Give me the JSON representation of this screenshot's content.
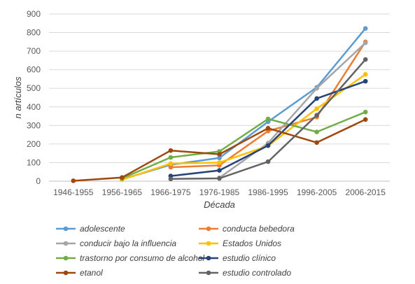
{
  "chart_data": {
    "type": "line",
    "title": "",
    "xlabel": "Década",
    "ylabel": "n artículos",
    "ylim": [
      0,
      900
    ],
    "yticks": [
      0,
      100,
      200,
      300,
      400,
      500,
      600,
      700,
      800,
      900
    ],
    "grid": "horizontal",
    "legend_position": "bottom",
    "categories": [
      "1946-1955",
      "1956-1965",
      "1966-1975",
      "1976-1985",
      "1986-1995",
      "1996-2005",
      "2006-2015"
    ],
    "series": [
      {
        "name": "adolescente",
        "color": "#5B9BD5",
        "values": [
          null,
          10,
          88,
          125,
          320,
          505,
          822
        ]
      },
      {
        "name": "conducta bebedora",
        "color": "#ED7D31",
        "values": [
          null,
          null,
          75,
          85,
          270,
          345,
          750
        ]
      },
      {
        "name": "conducir bajo la influencia",
        "color": "#A5A5A5",
        "values": [
          null,
          null,
          null,
          18,
          205,
          500,
          745
        ]
      },
      {
        "name": "Estados Unidos",
        "color": "#FFC000",
        "values": [
          null,
          8,
          95,
          100,
          190,
          390,
          575
        ]
      },
      {
        "name": "trastorno por consumo de alcohol",
        "color": "#70AD47",
        "values": [
          null,
          15,
          128,
          160,
          335,
          265,
          372
        ]
      },
      {
        "name": "estudio clínico",
        "color": "#264478",
        "values": [
          null,
          null,
          28,
          58,
          192,
          445,
          538
        ]
      },
      {
        "name": "etanol",
        "color": "#9E480E",
        "values": [
          2,
          20,
          165,
          145,
          285,
          208,
          332
        ]
      },
      {
        "name": "estudio controlado",
        "color": "#636363",
        "values": [
          null,
          null,
          12,
          15,
          105,
          355,
          655
        ]
      }
    ]
  }
}
